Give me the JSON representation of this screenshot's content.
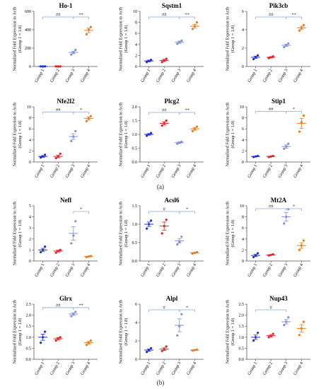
{
  "figure": {
    "panel_labels": [
      "(a)",
      "(b)"
    ],
    "colors": {
      "Group 1": "#1f2fd8",
      "Group 2": "#e02222",
      "Group 3": "#7f8fd8",
      "Group 4": "#ea7a1e",
      "bracket": "#8aa8d4",
      "axis": "#555555"
    }
  },
  "chart_data": [
    {
      "type": "scatter",
      "title": "Ho-1",
      "ylabel": "Normalized Fold Expression to Actb\n(Group 1 = 1.0)",
      "categories": [
        "Group 1",
        "Group 2",
        "Group 3",
        "Group 4"
      ],
      "ylim": [
        0,
        600
      ],
      "yticks": [
        0,
        200,
        400,
        600
      ],
      "series": [
        {
          "group": "Group 1",
          "values": [
            1,
            1,
            1
          ],
          "mean": 1,
          "sem": 0
        },
        {
          "group": "Group 2",
          "values": [
            1,
            1,
            1
          ],
          "mean": 1,
          "sem": 0
        },
        {
          "group": "Group 3",
          "values": [
            130,
            150,
            180
          ],
          "mean": 153,
          "sem": 14
        },
        {
          "group": "Group 4",
          "values": [
            350,
            400,
            430
          ],
          "mean": 393,
          "sem": 24
        }
      ],
      "annotations": [
        {
          "text": "##",
          "between": [
            1,
            3
          ]
        },
        {
          "text": "**",
          "between": [
            3,
            4
          ]
        }
      ]
    },
    {
      "type": "scatter",
      "title": "Sqstm1",
      "ylabel": "Normalized Fold Expression to Actb\n(Group 1 = 1.0)",
      "categories": [
        "Group 1",
        "Group 2",
        "Group 3",
        "Group 4"
      ],
      "ylim": [
        0,
        10
      ],
      "yticks": [
        0,
        2,
        4,
        6,
        8,
        10
      ],
      "series": [
        {
          "group": "Group 1",
          "values": [
            0.8,
            1.0,
            1.2
          ],
          "mean": 1.0,
          "sem": 0.15
        },
        {
          "group": "Group 2",
          "values": [
            0.8,
            1.1,
            1.4
          ],
          "mean": 1.1,
          "sem": 0.2
        },
        {
          "group": "Group 3",
          "values": [
            4.1,
            4.4,
            4.7
          ],
          "mean": 4.4,
          "sem": 0.2
        },
        {
          "group": "Group 4",
          "values": [
            6.8,
            7.3,
            8.0
          ],
          "mean": 7.3,
          "sem": 0.35
        }
      ],
      "annotations": [
        {
          "text": "##",
          "between": [
            1,
            3
          ]
        },
        {
          "text": "**",
          "between": [
            3,
            4
          ]
        }
      ]
    },
    {
      "type": "scatter",
      "title": "Pik3cb",
      "ylabel": "Normalized Fold Expression to Actb\n(Group 1 = 1.0)",
      "categories": [
        "Group 1",
        "Group 2",
        "Group 3",
        "Group 4"
      ],
      "ylim": [
        0,
        6
      ],
      "yticks": [
        0,
        2,
        4,
        6
      ],
      "series": [
        {
          "group": "Group 1",
          "values": [
            0.8,
            1.0,
            1.2
          ],
          "mean": 1.0,
          "sem": 0.12
        },
        {
          "group": "Group 2",
          "values": [
            0.9,
            1.0,
            1.1
          ],
          "mean": 1.0,
          "sem": 0.06
        },
        {
          "group": "Group 3",
          "values": [
            2.1,
            2.3,
            2.5
          ],
          "mean": 2.3,
          "sem": 0.12
        },
        {
          "group": "Group 4",
          "values": [
            3.9,
            4.2,
            4.5
          ],
          "mean": 4.2,
          "sem": 0.18
        }
      ],
      "annotations": [
        {
          "text": "##",
          "between": [
            1,
            3
          ]
        },
        {
          "text": "**",
          "between": [
            3,
            4
          ]
        }
      ]
    },
    {
      "type": "scatter",
      "title": "Nfe2l2",
      "ylabel": "Normalized Fold Expression to Actb\n(Group 1 = 1.0)",
      "categories": [
        "Group 1",
        "Group 2",
        "Group 3",
        "Group 4"
      ],
      "ylim": [
        0,
        10
      ],
      "yticks": [
        0,
        2,
        4,
        6,
        8,
        10
      ],
      "series": [
        {
          "group": "Group 1",
          "values": [
            0.8,
            1.0,
            1.3
          ],
          "mean": 1.0,
          "sem": 0.15
        },
        {
          "group": "Group 2",
          "values": [
            0.7,
            1.0,
            1.5
          ],
          "mean": 1.0,
          "sem": 0.25
        },
        {
          "group": "Group 3",
          "values": [
            3.8,
            4.6,
            5.6
          ],
          "mean": 4.6,
          "sem": 0.5
        },
        {
          "group": "Group 4",
          "values": [
            7.4,
            7.9,
            8.3
          ],
          "mean": 7.9,
          "sem": 0.3
        }
      ],
      "annotations": [
        {
          "text": "##",
          "between": [
            1,
            3
          ]
        },
        {
          "text": "*",
          "between": [
            3,
            4
          ]
        }
      ]
    },
    {
      "type": "scatter",
      "title": "Plcg2",
      "ylabel": "Normalized Fold Expression to Actb\n(Group 1 = 1.0)",
      "categories": [
        "Group 1",
        "Group 2",
        "Group 3",
        "Group 4"
      ],
      "ylim": [
        0,
        2.0
      ],
      "yticks": [
        0.0,
        0.5,
        1.0,
        1.5,
        2.0
      ],
      "series": [
        {
          "group": "Group 1",
          "values": [
            0.95,
            1.0,
            1.05
          ],
          "mean": 1.0,
          "sem": 0.03
        },
        {
          "group": "Group 2",
          "values": [
            1.32,
            1.4,
            1.5
          ],
          "mean": 1.4,
          "sem": 0.06
        },
        {
          "group": "Group 3",
          "values": [
            0.66,
            0.7,
            0.73
          ],
          "mean": 0.7,
          "sem": 0.03
        },
        {
          "group": "Group 4",
          "values": [
            1.12,
            1.2,
            1.28
          ],
          "mean": 1.2,
          "sem": 0.05
        }
      ],
      "annotations": [
        {
          "text": "##",
          "between": [
            1,
            3
          ]
        },
        {
          "text": "**",
          "between": [
            3,
            4
          ]
        }
      ]
    },
    {
      "type": "scatter",
      "title": "Stip1",
      "ylabel": "Normalized Fold Expression to Actb\n(Group 1 = 1.0)",
      "categories": [
        "Group 1",
        "Group 2",
        "Group 3",
        "Group 4"
      ],
      "ylim": [
        0,
        10
      ],
      "yticks": [
        0,
        2,
        4,
        6,
        8,
        10
      ],
      "series": [
        {
          "group": "Group 1",
          "values": [
            0.9,
            1.0,
            1.1
          ],
          "mean": 1.0,
          "sem": 0.05
        },
        {
          "group": "Group 2",
          "values": [
            0.9,
            1.0,
            1.1
          ],
          "mean": 1.0,
          "sem": 0.05
        },
        {
          "group": "Group 3",
          "values": [
            2.4,
            2.8,
            3.3
          ],
          "mean": 2.8,
          "sem": 0.3
        },
        {
          "group": "Group 4",
          "values": [
            5.5,
            7.2,
            8.4
          ],
          "mean": 7.0,
          "sem": 0.9
        }
      ],
      "annotations": [
        {
          "text": "##",
          "between": [
            1,
            3
          ]
        },
        {
          "text": "*",
          "between": [
            3,
            4
          ]
        }
      ]
    },
    {
      "type": "scatter",
      "title": "Nefl",
      "ylabel": "Normalized Fold Expression to Actb\n(Group 1 = 1.0)",
      "categories": [
        "Group 1",
        "Group 2",
        "Group 3",
        "Group 4"
      ],
      "ylim": [
        0,
        5
      ],
      "yticks": [
        0,
        1,
        2,
        3,
        4,
        5
      ],
      "series": [
        {
          "group": "Group 1",
          "values": [
            0.8,
            1.0,
            1.3
          ],
          "mean": 1.0,
          "sem": 0.15
        },
        {
          "group": "Group 2",
          "values": [
            0.75,
            0.9,
            1.0
          ],
          "mean": 0.9,
          "sem": 0.08
        },
        {
          "group": "Group 3",
          "values": [
            1.6,
            2.3,
            3.6
          ],
          "mean": 2.5,
          "sem": 0.6
        },
        {
          "group": "Group 4",
          "values": [
            0.35,
            0.4,
            0.45
          ],
          "mean": 0.4,
          "sem": 0.03
        }
      ],
      "annotations": [
        {
          "text": "*",
          "between": [
            3,
            4
          ]
        }
      ]
    },
    {
      "type": "scatter",
      "title": "Acsl6",
      "ylabel": "Normalized Fold Expression to Actb\n(Group 1 = 1.0)",
      "categories": [
        "Group 1",
        "Group 2",
        "Group 3",
        "Group 4"
      ],
      "ylim": [
        0,
        1.5
      ],
      "yticks": [
        0.0,
        0.5,
        1.0,
        1.5
      ],
      "series": [
        {
          "group": "Group 1",
          "values": [
            0.88,
            1.0,
            1.1
          ],
          "mean": 1.0,
          "sem": 0.06
        },
        {
          "group": "Group 2",
          "values": [
            0.75,
            0.95,
            1.12
          ],
          "mean": 0.95,
          "sem": 0.11
        },
        {
          "group": "Group 3",
          "values": [
            0.45,
            0.52,
            0.66
          ],
          "mean": 0.55,
          "sem": 0.06
        },
        {
          "group": "Group 4",
          "values": [
            0.2,
            0.22,
            0.24
          ],
          "mean": 0.22,
          "sem": 0.01
        }
      ],
      "annotations": [
        {
          "text": "#",
          "between": [
            1,
            3
          ]
        },
        {
          "text": "*",
          "between": [
            3,
            4
          ]
        }
      ]
    },
    {
      "type": "scatter",
      "title": "Mt2A",
      "ylabel": "Normalized Fold Expression to Actb\n(Group 1 = 1.0)",
      "categories": [
        "Group 1",
        "Group 2",
        "Group 3",
        "Group 4"
      ],
      "ylim": [
        0,
        10
      ],
      "yticks": [
        0,
        2,
        4,
        6,
        8,
        10
      ],
      "series": [
        {
          "group": "Group 1",
          "values": [
            0.7,
            1.0,
            1.4
          ],
          "mean": 1.0,
          "sem": 0.2
        },
        {
          "group": "Group 2",
          "values": [
            1.0,
            1.1,
            1.2
          ],
          "mean": 1.1,
          "sem": 0.05
        },
        {
          "group": "Group 3",
          "values": [
            6.8,
            8.0,
            9.4
          ],
          "mean": 8.0,
          "sem": 0.8
        },
        {
          "group": "Group 4",
          "values": [
            2.0,
            2.8,
            3.7
          ],
          "mean": 2.8,
          "sem": 0.5
        }
      ],
      "annotations": [
        {
          "text": "##",
          "between": [
            1,
            3
          ]
        },
        {
          "text": "*",
          "between": [
            3,
            4
          ]
        }
      ]
    },
    {
      "type": "scatter",
      "title": "Glrx",
      "ylabel": "Normalized Fold Expression to Actb\n(Group 1 = 1.0)",
      "categories": [
        "Group 1",
        "Group 2",
        "Group 3",
        "Group 4"
      ],
      "ylim": [
        0,
        2.5
      ],
      "yticks": [
        0.0,
        0.5,
        1.0,
        1.5,
        2.0,
        2.5
      ],
      "series": [
        {
          "group": "Group 1",
          "values": [
            0.75,
            1.0,
            1.25
          ],
          "mean": 1.0,
          "sem": 0.14
        },
        {
          "group": "Group 2",
          "values": [
            0.85,
            0.95,
            1.0
          ],
          "mean": 0.93,
          "sem": 0.05
        },
        {
          "group": "Group 3",
          "values": [
            1.95,
            2.05,
            2.15
          ],
          "mean": 2.05,
          "sem": 0.06
        },
        {
          "group": "Group 4",
          "values": [
            0.65,
            0.75,
            0.85
          ],
          "mean": 0.75,
          "sem": 0.06
        }
      ],
      "annotations": [
        {
          "text": "##",
          "between": [
            1,
            3
          ]
        },
        {
          "text": "**",
          "between": [
            3,
            4
          ]
        }
      ]
    },
    {
      "type": "scatter",
      "title": "Alpl",
      "ylabel": "Normalized Fold Expression to Actb\n(Group 1 = 1.0)",
      "categories": [
        "Group 1",
        "Group 2",
        "Group 3",
        "Group 4"
      ],
      "ylim": [
        0,
        6
      ],
      "yticks": [
        0,
        2,
        4,
        6
      ],
      "series": [
        {
          "group": "Group 1",
          "values": [
            0.8,
            1.0,
            1.2
          ],
          "mean": 1.0,
          "sem": 0.12
        },
        {
          "group": "Group 2",
          "values": [
            0.9,
            1.1,
            1.4
          ],
          "mean": 1.1,
          "sem": 0.15
        },
        {
          "group": "Group 3",
          "values": [
            2.6,
            3.6,
            4.9
          ],
          "mean": 3.7,
          "sem": 0.7
        },
        {
          "group": "Group 4",
          "values": [
            0.95,
            1.0,
            1.05
          ],
          "mean": 1.0,
          "sem": 0.03
        }
      ],
      "annotations": [
        {
          "text": "#",
          "between": [
            1,
            3
          ]
        },
        {
          "text": "*",
          "between": [
            3,
            4
          ]
        }
      ]
    },
    {
      "type": "scatter",
      "title": "Nup43",
      "ylabel": "Normalized Fold Expression to Actb\n(Group 1 = 1.0)",
      "categories": [
        "Group 1",
        "Group 2",
        "Group 3",
        "Group 4"
      ],
      "ylim": [
        0,
        2.5
      ],
      "yticks": [
        0.0,
        0.5,
        1.0,
        1.5,
        2.0,
        2.5
      ],
      "series": [
        {
          "group": "Group 1",
          "values": [
            0.85,
            1.0,
            1.2
          ],
          "mean": 1.0,
          "sem": 0.1
        },
        {
          "group": "Group 2",
          "values": [
            1.0,
            1.05,
            1.15
          ],
          "mean": 1.07,
          "sem": 0.05
        },
        {
          "group": "Group 3",
          "values": [
            1.55,
            1.7,
            1.9
          ],
          "mean": 1.7,
          "sem": 0.1
        },
        {
          "group": "Group 4",
          "values": [
            1.1,
            1.4,
            1.7
          ],
          "mean": 1.4,
          "sem": 0.17
        }
      ],
      "annotations": [
        {
          "text": "#",
          "between": [
            1,
            3
          ]
        }
      ]
    }
  ]
}
